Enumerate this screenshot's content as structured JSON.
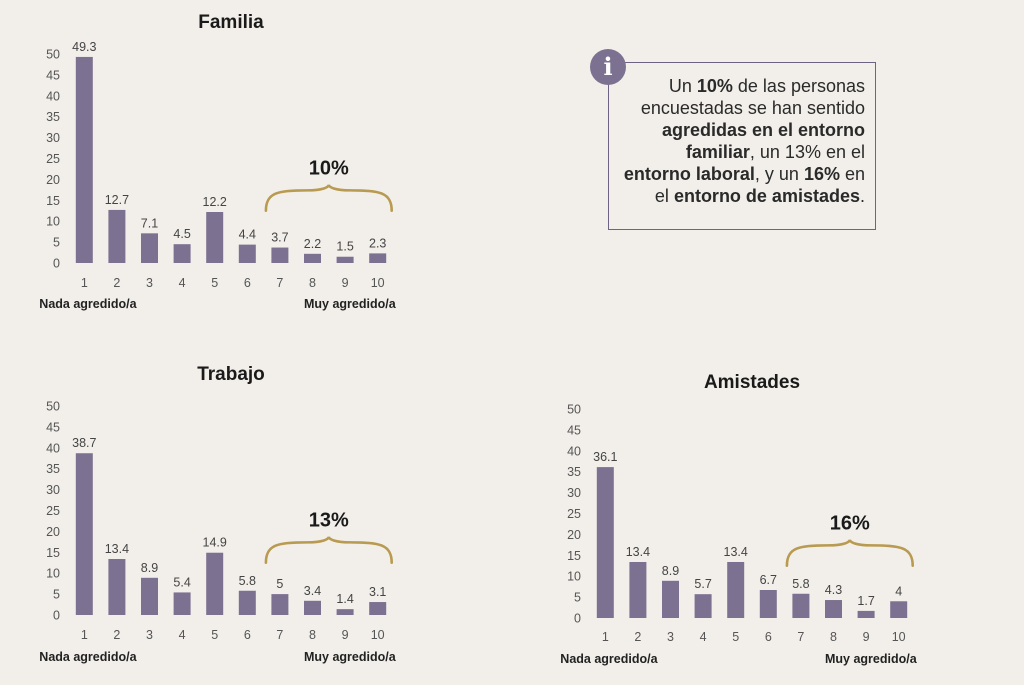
{
  "info": {
    "icon": "info-icon",
    "segments": [
      {
        "text": "Un ",
        "bold": false
      },
      {
        "text": "10%",
        "bold": true
      },
      {
        "text": " de las personas encuestadas se han sentido ",
        "bold": false
      },
      {
        "text": "agredidas en el entorno familiar",
        "bold": true
      },
      {
        "text": ", un 13% en el ",
        "bold": false
      },
      {
        "text": "entorno laboral",
        "bold": true
      },
      {
        "text": ", y un ",
        "bold": false
      },
      {
        "text": "16%",
        "bold": true
      },
      {
        "text": " en el ",
        "bold": false
      },
      {
        "text": "entorno de amistades",
        "bold": true
      },
      {
        "text": ".",
        "bold": false
      }
    ]
  },
  "colors": {
    "bar": "#7d7191",
    "brace": "#b89a50",
    "axis_text": "#555555",
    "title": "#1a1a1a"
  },
  "chart_data": [
    {
      "type": "bar",
      "title": "Familia",
      "categories": [
        "1",
        "2",
        "3",
        "4",
        "5",
        "6",
        "7",
        "8",
        "9",
        "10"
      ],
      "values": [
        49.3,
        12.7,
        7.1,
        4.5,
        12.2,
        4.4,
        3.7,
        2.2,
        1.5,
        2.3
      ],
      "ylim": [
        0,
        50
      ],
      "yticks": [
        0,
        5,
        10,
        15,
        20,
        25,
        30,
        35,
        40,
        45,
        50
      ],
      "xlabel_left": "Nada agredido/a",
      "xlabel_right": "Muy agredido/a",
      "annotation": {
        "text": "10%",
        "span": [
          "7",
          "10"
        ]
      },
      "grid": false
    },
    {
      "type": "bar",
      "title": "Trabajo",
      "categories": [
        "1",
        "2",
        "3",
        "4",
        "5",
        "6",
        "7",
        "8",
        "9",
        "10"
      ],
      "values": [
        38.7,
        13.4,
        8.9,
        5.4,
        14.9,
        5.8,
        5,
        3.4,
        1.4,
        3.1
      ],
      "ylim": [
        0,
        50
      ],
      "yticks": [
        0,
        5,
        10,
        15,
        20,
        25,
        30,
        35,
        40,
        45,
        50
      ],
      "xlabel_left": "Nada agredido/a",
      "xlabel_right": "Muy agredido/a",
      "annotation": {
        "text": "13%",
        "span": [
          "7",
          "10"
        ]
      },
      "grid": false
    },
    {
      "type": "bar",
      "title": "Amistades",
      "categories": [
        "1",
        "2",
        "3",
        "4",
        "5",
        "6",
        "7",
        "8",
        "9",
        "10"
      ],
      "values": [
        36.1,
        13.4,
        8.9,
        5.7,
        13.4,
        6.7,
        5.8,
        4.3,
        1.7,
        4
      ],
      "ylim": [
        0,
        50
      ],
      "yticks": [
        0,
        5,
        10,
        15,
        20,
        25,
        30,
        35,
        40,
        45,
        50
      ],
      "xlabel_left": "Nada agredido/a",
      "xlabel_right": "Muy agredido/a",
      "annotation": {
        "text": "16%",
        "span": [
          "7",
          "10"
        ]
      },
      "grid": false
    }
  ]
}
